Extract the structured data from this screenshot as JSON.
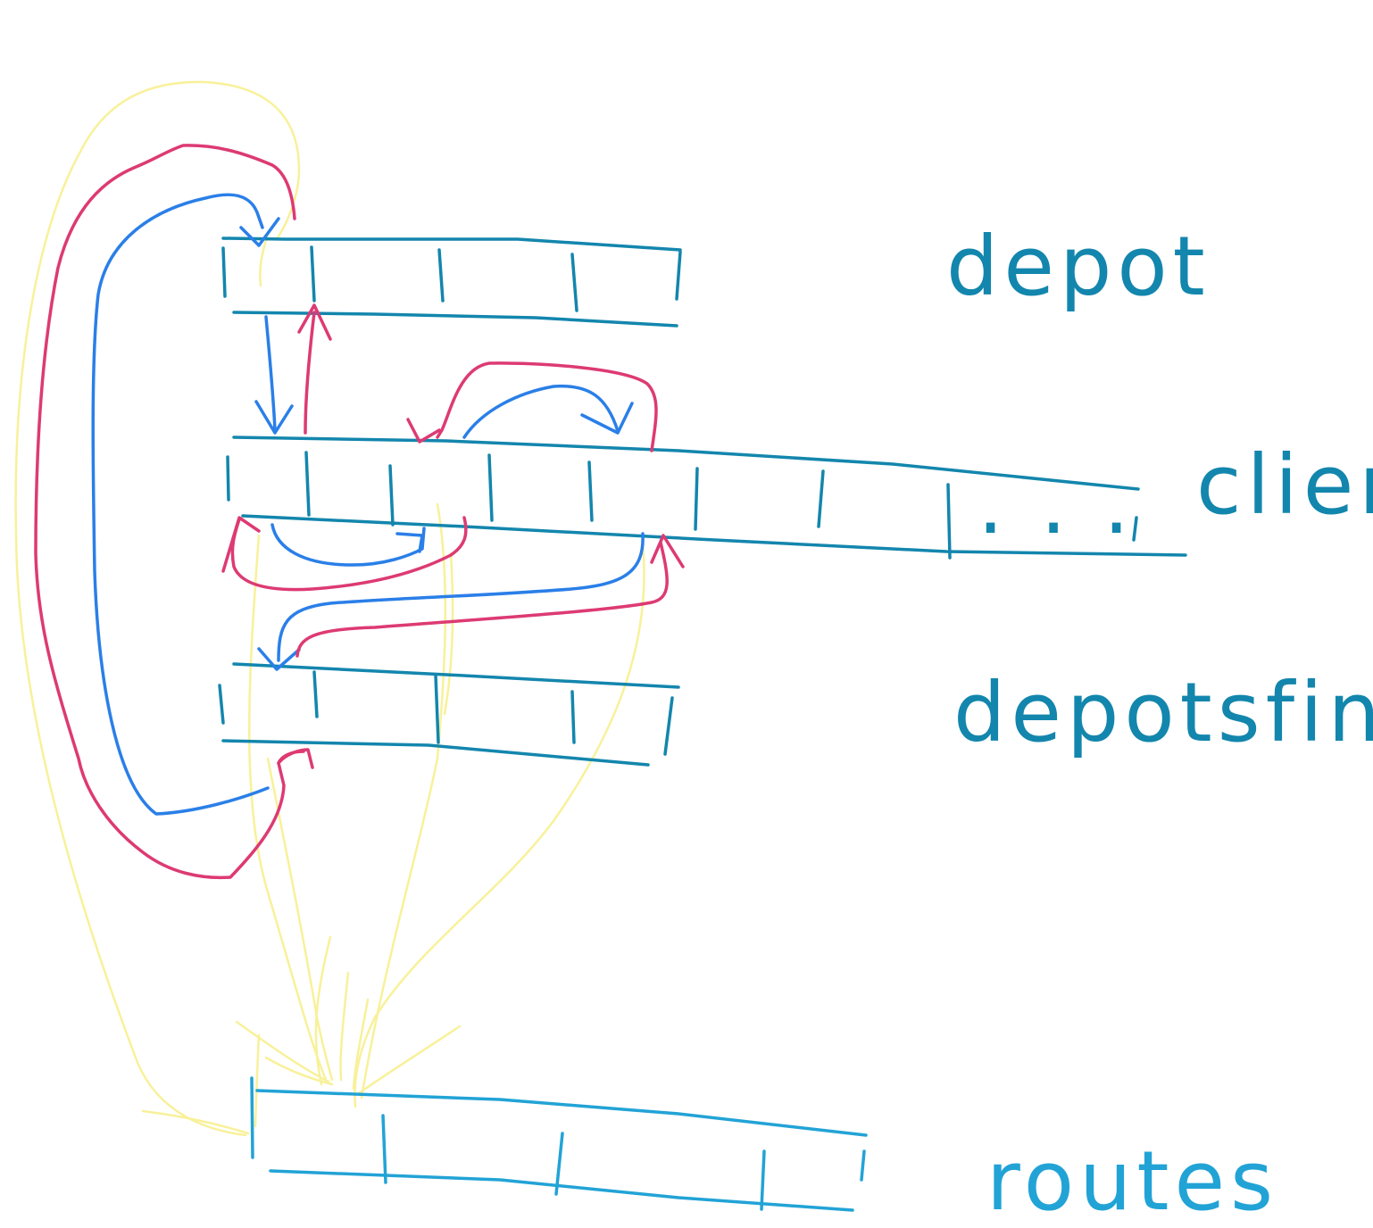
{
  "labels": {
    "depot": "depot",
    "clients": "client",
    "depotsfin": "depotsfin",
    "routes": "routes",
    "ellipsis": ". . ."
  },
  "colors": {
    "array": "#1386ad",
    "routes_array": "#22a3d6",
    "blue_arrow": "#2a7fe8",
    "red_arrow": "#dd3a73",
    "yellow_line": "#f8f19a",
    "background": "#ffffff"
  }
}
